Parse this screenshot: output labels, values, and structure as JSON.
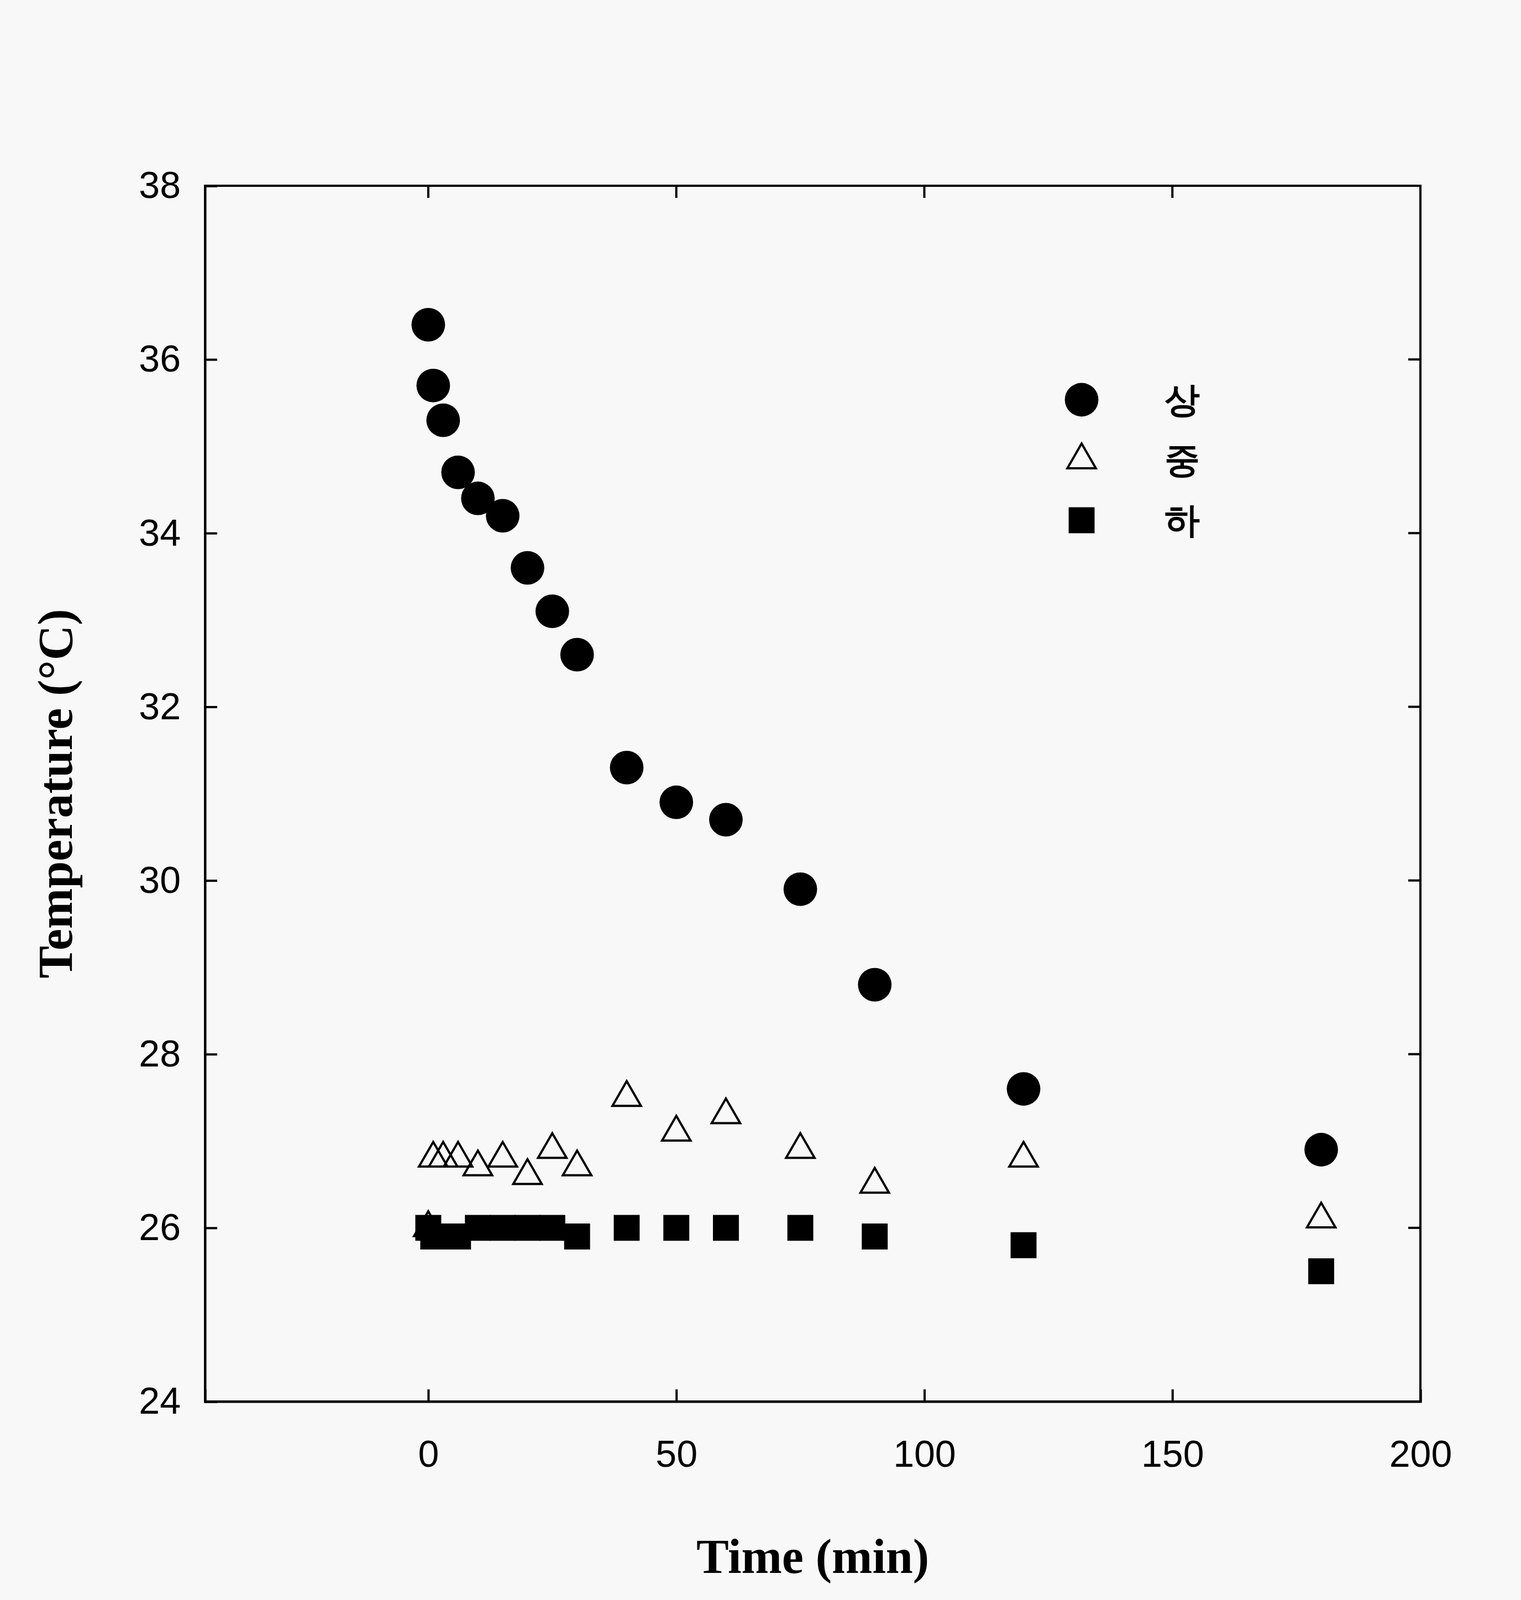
{
  "chart_data": {
    "type": "scatter",
    "x_label": "Time (min)",
    "y_label": "Temperature (°C)",
    "x": [
      0,
      1,
      3,
      6,
      10,
      15,
      20,
      25,
      30,
      40,
      50,
      60,
      75,
      90,
      120,
      180
    ],
    "series": [
      {
        "name": "상",
        "color": "#000000",
        "marker": "circle",
        "values": [
          36.4,
          35.7,
          35.3,
          34.7,
          34.4,
          34.2,
          33.6,
          33.1,
          32.6,
          31.3,
          30.9,
          30.7,
          29.9,
          28.8,
          27.6,
          26.9
        ]
      },
      {
        "name": "중",
        "color": "#000000",
        "marker": "open-triangle",
        "values": [
          26.0,
          26.8,
          26.8,
          26.8,
          26.7,
          26.8,
          26.6,
          26.9,
          26.7,
          27.5,
          27.1,
          27.3,
          26.9,
          26.5,
          26.8,
          26.1
        ]
      },
      {
        "name": "하",
        "color": "#000000",
        "marker": "square",
        "values": [
          26.0,
          25.9,
          25.9,
          25.9,
          26.0,
          26.0,
          26.0,
          26.0,
          25.9,
          26.0,
          26.0,
          26.0,
          26.0,
          25.9,
          25.8,
          25.5
        ]
      }
    ],
    "xlim": [
      -45,
      200
    ],
    "xticks": [
      0,
      50,
      100,
      150,
      200
    ],
    "ylim": [
      24,
      38
    ],
    "yticks": [
      24,
      26,
      28,
      30,
      32,
      34,
      36,
      38
    ],
    "legend": "upper right",
    "grid": false
  }
}
